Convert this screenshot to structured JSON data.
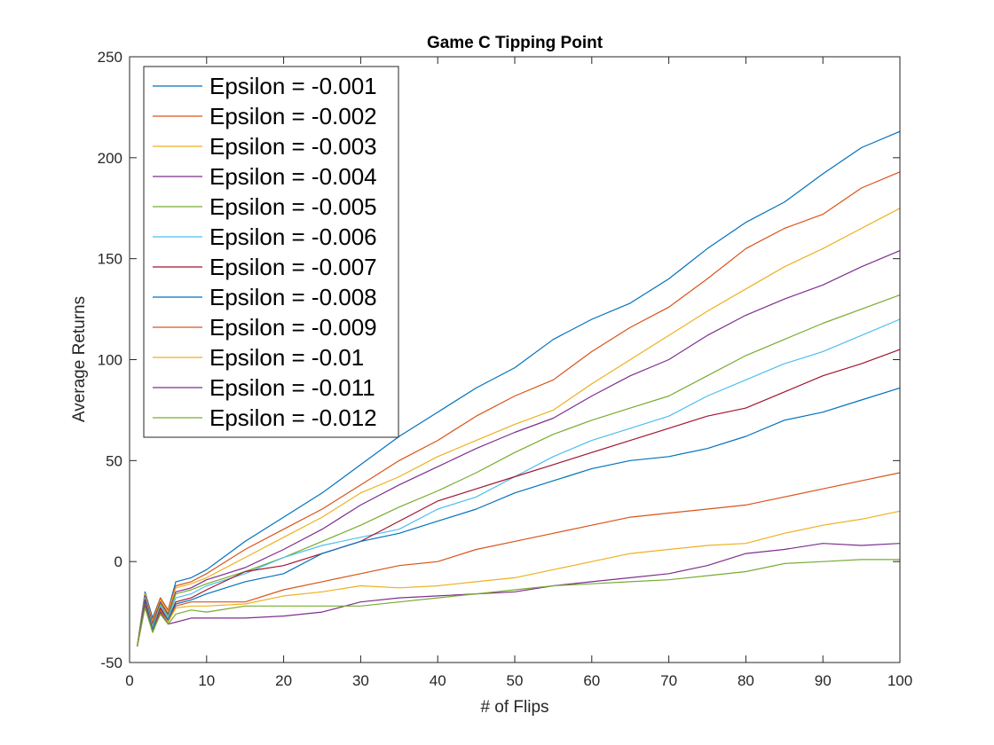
{
  "chart_data": {
    "type": "line",
    "title": "Game C Tipping Point",
    "xlabel": "# of Flips",
    "ylabel": "Average Returns",
    "xlim": [
      0,
      100
    ],
    "ylim": [
      -50,
      250
    ],
    "xticks": [
      0,
      10,
      20,
      30,
      40,
      50,
      60,
      70,
      80,
      90,
      100
    ],
    "yticks": [
      -50,
      0,
      50,
      100,
      150,
      200,
      250
    ],
    "grid": false,
    "legend_position": "top-left",
    "x_points": [
      1,
      2,
      3,
      4,
      5,
      6,
      8,
      10,
      15,
      20,
      25,
      30,
      35,
      40,
      45,
      50,
      55,
      60,
      65,
      70,
      75,
      80,
      85,
      90,
      95,
      100
    ],
    "series": [
      {
        "name": "Epsilon = -0.001",
        "color": "#0072BD",
        "values": [
          -42,
          -15,
          -28,
          -18,
          -24,
          -10,
          -8,
          -4,
          10,
          22,
          34,
          48,
          62,
          74,
          86,
          96,
          110,
          120,
          128,
          140,
          155,
          168,
          178,
          192,
          205,
          213
        ]
      },
      {
        "name": "Epsilon = -0.002",
        "color": "#D95319",
        "values": [
          -42,
          -16,
          -29,
          -18,
          -24,
          -12,
          -10,
          -6,
          6,
          16,
          26,
          38,
          50,
          60,
          72,
          82,
          90,
          104,
          116,
          126,
          140,
          155,
          165,
          172,
          185,
          193
        ]
      },
      {
        "name": "Epsilon = -0.003",
        "color": "#EDB120",
        "values": [
          -42,
          -16,
          -30,
          -19,
          -25,
          -13,
          -11,
          -8,
          2,
          12,
          22,
          34,
          42,
          52,
          60,
          68,
          75,
          88,
          100,
          112,
          124,
          135,
          146,
          155,
          165,
          175
        ]
      },
      {
        "name": "Epsilon = -0.004",
        "color": "#7E2F8E",
        "values": [
          -42,
          -17,
          -31,
          -20,
          -26,
          -15,
          -13,
          -9,
          -3,
          6,
          16,
          28,
          38,
          47,
          56,
          64,
          71,
          82,
          92,
          100,
          112,
          122,
          130,
          137,
          146,
          154
        ]
      },
      {
        "name": "Epsilon = -0.005",
        "color": "#77AC30",
        "values": [
          -42,
          -18,
          -32,
          -21,
          -27,
          -16,
          -14,
          -11,
          -5,
          2,
          10,
          18,
          27,
          35,
          44,
          54,
          63,
          70,
          76,
          82,
          92,
          102,
          110,
          118,
          125,
          132
        ]
      },
      {
        "name": "Epsilon = -0.006",
        "color": "#4DBEEE",
        "values": [
          -42,
          -18,
          -33,
          -22,
          -28,
          -18,
          -16,
          -12,
          -6,
          2,
          8,
          12,
          16,
          26,
          32,
          42,
          52,
          60,
          66,
          72,
          82,
          90,
          98,
          104,
          112,
          120
        ]
      },
      {
        "name": "Epsilon = -0.007",
        "color": "#A2142F",
        "values": [
          -42,
          -19,
          -34,
          -23,
          -29,
          -20,
          -18,
          -14,
          -5,
          -2,
          4,
          10,
          20,
          30,
          36,
          42,
          48,
          54,
          60,
          66,
          72,
          76,
          84,
          92,
          98,
          105
        ]
      },
      {
        "name": "Epsilon = -0.008",
        "color": "#0072BD",
        "values": [
          -42,
          -20,
          -34,
          -24,
          -29,
          -21,
          -19,
          -16,
          -10,
          -6,
          4,
          10,
          14,
          20,
          26,
          34,
          40,
          46,
          50,
          52,
          56,
          62,
          70,
          74,
          80,
          86
        ]
      },
      {
        "name": "Epsilon = -0.009",
        "color": "#D95319",
        "values": [
          -42,
          -21,
          -35,
          -24,
          -30,
          -22,
          -20,
          -20,
          -20,
          -14,
          -10,
          -6,
          -2,
          0,
          6,
          10,
          14,
          18,
          22,
          24,
          26,
          28,
          32,
          36,
          40,
          44
        ]
      },
      {
        "name": "Epsilon = -0.01",
        "color": "#EDB120",
        "values": [
          -42,
          -22,
          -35,
          -25,
          -30,
          -23,
          -22,
          -22,
          -21,
          -17,
          -15,
          -12,
          -13,
          -12,
          -10,
          -8,
          -4,
          0,
          4,
          6,
          8,
          9,
          14,
          18,
          21,
          25
        ]
      },
      {
        "name": "Epsilon = -0.011",
        "color": "#7E2F8E",
        "values": [
          -42,
          -22,
          -35,
          -25,
          -31,
          -30,
          -28,
          -28,
          -28,
          -27,
          -25,
          -20,
          -18,
          -17,
          -16,
          -15,
          -12,
          -10,
          -8,
          -6,
          -2,
          4,
          6,
          9,
          8,
          9
        ]
      },
      {
        "name": "Epsilon = -0.012",
        "color": "#77AC30",
        "values": [
          -42,
          -23,
          -35,
          -26,
          -31,
          -26,
          -24,
          -25,
          -22,
          -22,
          -22,
          -22,
          -20,
          -18,
          -16,
          -14,
          -12,
          -11,
          -10,
          -9,
          -7,
          -5,
          -1,
          0,
          1,
          1
        ]
      }
    ]
  }
}
